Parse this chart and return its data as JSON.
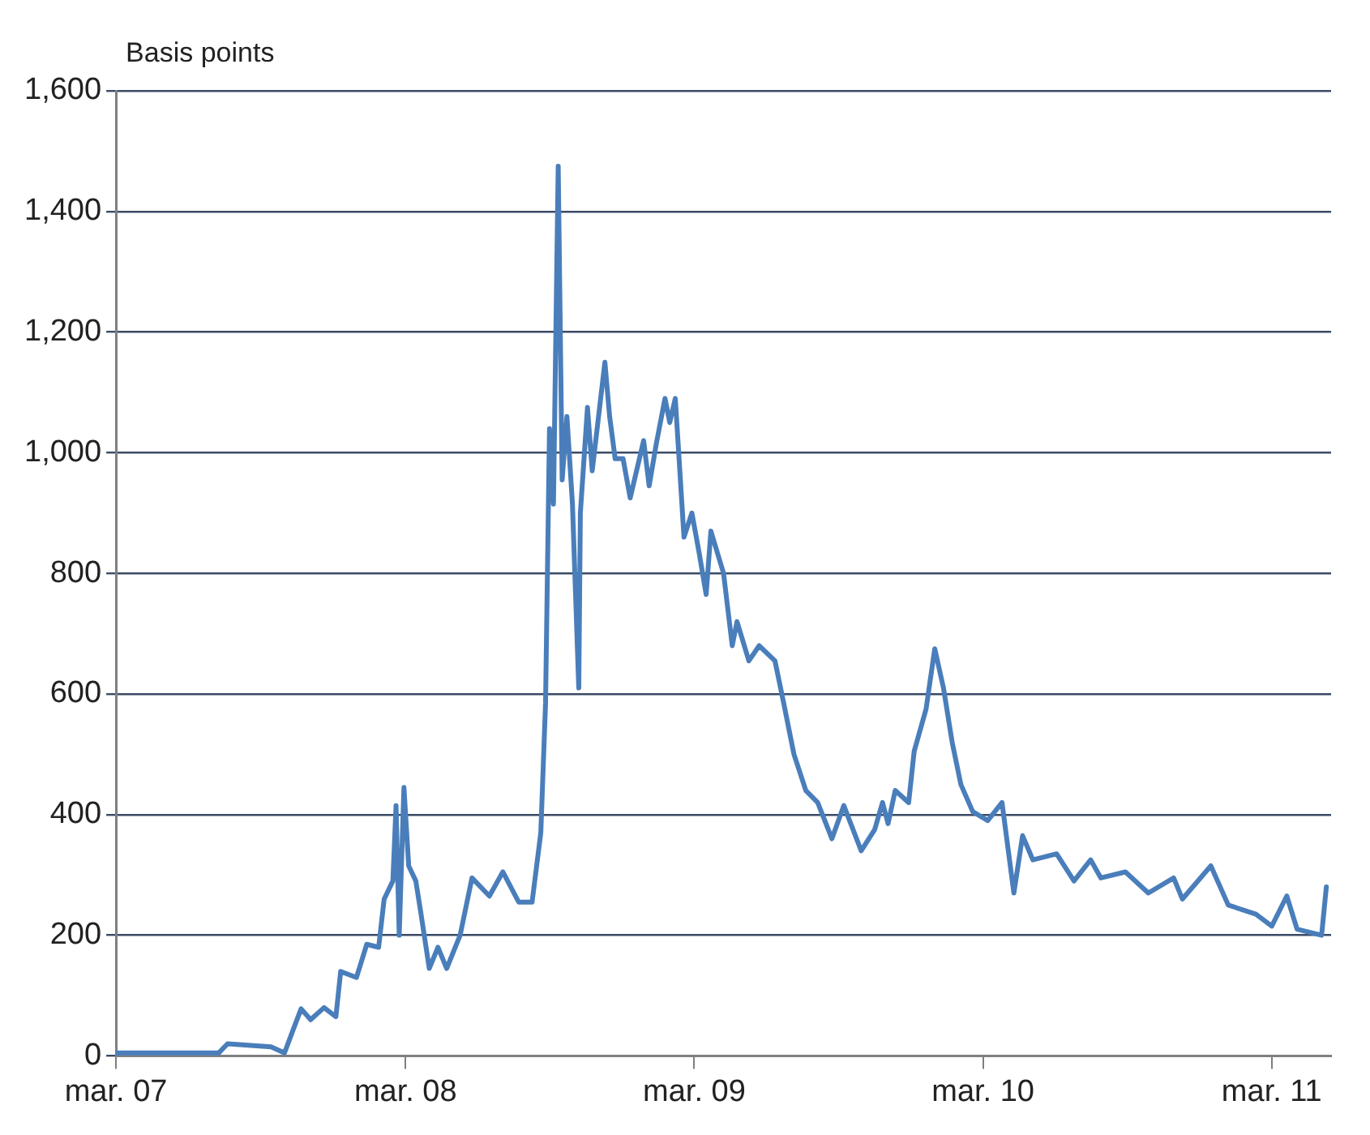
{
  "chart_data": {
    "type": "line",
    "ylabel": "Basis points",
    "x": [
      "2007-03-01",
      "2007-07-09",
      "2007-07-20",
      "2007-09-13",
      "2007-09-30",
      "2007-10-10",
      "2007-10-21",
      "2007-11-02",
      "2007-11-19",
      "2007-12-04",
      "2007-12-10",
      "2007-12-30",
      "2008-01-12",
      "2008-01-27",
      "2008-02-03",
      "2008-02-14",
      "2008-02-18",
      "2008-02-22",
      "2008-02-28",
      "2008-03-05",
      "2008-03-14",
      "2008-03-20",
      "2008-03-31",
      "2008-04-11",
      "2008-04-22",
      "2008-05-09",
      "2008-05-24",
      "2008-06-15",
      "2008-07-02",
      "2008-07-22",
      "2008-08-08",
      "2008-08-19",
      "2008-08-25",
      "2008-08-30",
      "2008-09-04",
      "2008-09-10",
      "2008-09-15",
      "2008-09-21",
      "2008-09-28",
      "2008-10-06",
      "2008-10-08",
      "2008-10-17",
      "2008-10-23",
      "2008-11-08",
      "2008-11-14",
      "2008-11-21",
      "2008-12-01",
      "2008-12-10",
      "2008-12-27",
      "2009-01-03",
      "2009-01-12",
      "2009-01-23",
      "2009-01-29",
      "2009-02-05",
      "2009-02-16",
      "2009-02-26",
      "2009-03-07",
      "2009-03-16",
      "2009-03-22",
      "2009-04-07",
      "2009-04-18",
      "2009-04-24",
      "2009-05-09",
      "2009-05-22",
      "2009-06-11",
      "2009-06-22",
      "2009-07-05",
      "2009-07-20",
      "2009-08-04",
      "2009-08-22",
      "2009-09-06",
      "2009-09-28",
      "2009-10-15",
      "2009-10-25",
      "2009-11-01",
      "2009-11-10",
      "2009-11-27",
      "2009-12-04",
      "2009-12-19",
      "2009-12-30",
      "2010-01-10",
      "2010-01-21",
      "2010-02-01",
      "2010-02-16",
      "2010-03-07",
      "2010-03-25",
      "2010-04-09",
      "2010-04-20",
      "2010-05-03",
      "2010-06-02",
      "2010-06-24",
      "2010-07-15",
      "2010-07-28",
      "2010-08-28",
      "2010-09-26",
      "2010-10-28",
      "2010-11-08",
      "2010-12-14",
      "2011-01-05",
      "2011-02-09",
      "2011-03-01",
      "2011-03-20",
      "2011-04-02",
      "2011-05-03",
      "2011-05-09"
    ],
    "series": [
      {
        "color": "#4a7ebb",
        "values": [
          5,
          5,
          20,
          15,
          5,
          40,
          78,
          60,
          80,
          65,
          140,
          130,
          185,
          180,
          260,
          290,
          415,
          200,
          445,
          315,
          290,
          240,
          145,
          180,
          145,
          200,
          295,
          265,
          305,
          255,
          255,
          370,
          585,
          1040,
          915,
          1475,
          955,
          1060,
          915,
          610,
          900,
          1075,
          970,
          1150,
          1060,
          990,
          990,
          925,
          1020,
          945,
          1015,
          1090,
          1050,
          1090,
          860,
          900,
          835,
          765,
          870,
          800,
          680,
          720,
          655,
          680,
          655,
          585,
          500,
          440,
          420,
          360,
          415,
          340,
          375,
          420,
          385,
          440,
          420,
          505,
          575,
          675,
          610,
          520,
          450,
          405,
          390,
          420,
          270,
          365,
          325,
          335,
          290,
          325,
          295,
          305,
          270,
          295,
          260,
          315,
          250,
          235,
          215,
          265,
          210,
          200,
          280
        ]
      }
    ],
    "xlim": [
      "2007-03-01",
      "2011-05-15"
    ],
    "xticks": [
      {
        "value": "2007-03-01",
        "label": "mar. 07"
      },
      {
        "value": "2008-03-01",
        "label": "mar. 08"
      },
      {
        "value": "2009-03-01",
        "label": "mar. 09"
      },
      {
        "value": "2010-03-01",
        "label": "mar. 10"
      },
      {
        "value": "2011-03-01",
        "label": "mar. 11"
      }
    ],
    "ylim": [
      0,
      1600
    ],
    "yticks": [
      {
        "value": 0,
        "label": "0"
      },
      {
        "value": 200,
        "label": "200"
      },
      {
        "value": 400,
        "label": "400"
      },
      {
        "value": 600,
        "label": "600"
      },
      {
        "value": 800,
        "label": "800"
      },
      {
        "value": 1000,
        "label": "1,000"
      },
      {
        "value": 1200,
        "label": "1,200"
      },
      {
        "value": 1400,
        "label": "1,400"
      },
      {
        "value": 1600,
        "label": "1,600"
      }
    ],
    "grid": "y",
    "legend": false,
    "marker": "none",
    "line_style": "solid"
  }
}
